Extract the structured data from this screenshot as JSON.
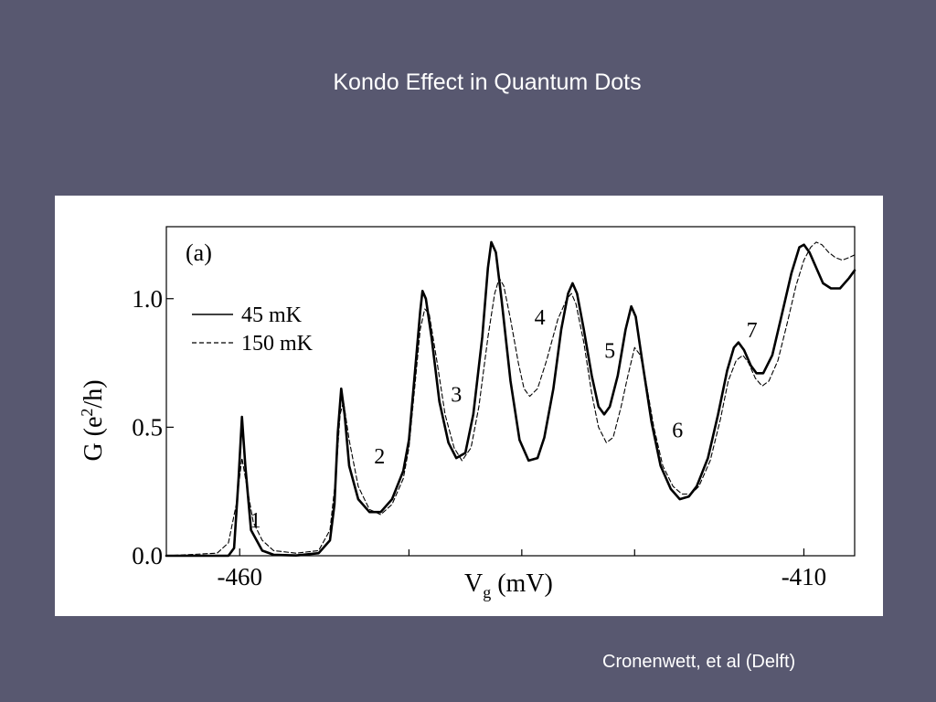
{
  "slide": {
    "title": "Kondo Effect in Quantum Dots",
    "credit": "Cronenwett, et al (Delft)"
  },
  "colors": {
    "background": "#585870",
    "panel": "#ffffff",
    "ink": "#000000"
  },
  "chart_data": {
    "type": "line",
    "panel_label": "(a)",
    "xlabel": "V",
    "xlabel_sub": "g",
    "xlabel_unit": " (mV)",
    "ylabel": "G (e",
    "ylabel_sup": "2",
    "ylabel_tail": "/h)",
    "xlim": [
      -466.5,
      -405.5
    ],
    "ylim": [
      0.0,
      1.28
    ],
    "x_major_ticks": [
      -460,
      -410
    ],
    "x_major_tick_labels": [
      "-460",
      "-410"
    ],
    "x_minor_ticks": [
      -445,
      -435,
      -425
    ],
    "y_ticks": [
      0.0,
      0.5,
      1.0
    ],
    "y_tick_labels": [
      "0.0",
      "0.5",
      "1.0"
    ],
    "grid": false,
    "legend_position": "top-left",
    "series": [
      {
        "name": "45 mK",
        "style": "solid",
        "points": [
          [
            -466.5,
            0
          ],
          [
            -461,
            0
          ],
          [
            -460.5,
            0.03
          ],
          [
            -460.1,
            0.3
          ],
          [
            -459.8,
            0.54
          ],
          [
            -459.5,
            0.35
          ],
          [
            -459,
            0.1
          ],
          [
            -458,
            0.02
          ],
          [
            -457,
            0.004
          ],
          [
            -455,
            0.001
          ],
          [
            -453,
            0.01
          ],
          [
            -452,
            0.06
          ],
          [
            -451.6,
            0.2
          ],
          [
            -451.3,
            0.48
          ],
          [
            -451,
            0.65
          ],
          [
            -450.7,
            0.55
          ],
          [
            -450.3,
            0.35
          ],
          [
            -449.5,
            0.22
          ],
          [
            -448.5,
            0.17
          ],
          [
            -447.5,
            0.17
          ],
          [
            -446.5,
            0.22
          ],
          [
            -445.5,
            0.33
          ],
          [
            -445,
            0.45
          ],
          [
            -444.5,
            0.7
          ],
          [
            -444,
            0.95
          ],
          [
            -443.8,
            1.03
          ],
          [
            -443.5,
            1.0
          ],
          [
            -443,
            0.85
          ],
          [
            -442.3,
            0.6
          ],
          [
            -441.5,
            0.44
          ],
          [
            -440.8,
            0.38
          ],
          [
            -440,
            0.4
          ],
          [
            -439.3,
            0.55
          ],
          [
            -438.5,
            0.85
          ],
          [
            -438,
            1.12
          ],
          [
            -437.7,
            1.22
          ],
          [
            -437.3,
            1.18
          ],
          [
            -436.8,
            1.0
          ],
          [
            -436,
            0.68
          ],
          [
            -435.2,
            0.45
          ],
          [
            -434.4,
            0.37
          ],
          [
            -433.6,
            0.38
          ],
          [
            -433,
            0.46
          ],
          [
            -432.2,
            0.65
          ],
          [
            -431.5,
            0.88
          ],
          [
            -430.9,
            1.02
          ],
          [
            -430.5,
            1.06
          ],
          [
            -430.1,
            1.02
          ],
          [
            -429.5,
            0.88
          ],
          [
            -428.8,
            0.7
          ],
          [
            -428.2,
            0.58
          ],
          [
            -427.7,
            0.55
          ],
          [
            -427.2,
            0.58
          ],
          [
            -426.5,
            0.7
          ],
          [
            -425.8,
            0.88
          ],
          [
            -425.3,
            0.97
          ],
          [
            -424.9,
            0.93
          ],
          [
            -424.3,
            0.75
          ],
          [
            -423.5,
            0.52
          ],
          [
            -422.7,
            0.35
          ],
          [
            -421.8,
            0.26
          ],
          [
            -421,
            0.22
          ],
          [
            -420.2,
            0.23
          ],
          [
            -419.5,
            0.27
          ],
          [
            -418.5,
            0.38
          ],
          [
            -417.6,
            0.55
          ],
          [
            -416.8,
            0.72
          ],
          [
            -416.2,
            0.81
          ],
          [
            -415.8,
            0.83
          ],
          [
            -415.3,
            0.8
          ],
          [
            -414.7,
            0.74
          ],
          [
            -414.2,
            0.71
          ],
          [
            -413.6,
            0.71
          ],
          [
            -412.8,
            0.78
          ],
          [
            -412,
            0.93
          ],
          [
            -411.1,
            1.1
          ],
          [
            -410.4,
            1.2
          ],
          [
            -410,
            1.21
          ],
          [
            -409.5,
            1.18
          ],
          [
            -408.9,
            1.12
          ],
          [
            -408.3,
            1.06
          ],
          [
            -407.6,
            1.04
          ],
          [
            -406.8,
            1.04
          ],
          [
            -406,
            1.08
          ],
          [
            -405.5,
            1.11
          ]
        ]
      },
      {
        "name": "150 mK",
        "style": "dashed",
        "points": [
          [
            -466.5,
            0
          ],
          [
            -462,
            0.01
          ],
          [
            -461,
            0.05
          ],
          [
            -460.3,
            0.2
          ],
          [
            -459.8,
            0.38
          ],
          [
            -459.4,
            0.28
          ],
          [
            -458.8,
            0.13
          ],
          [
            -458,
            0.06
          ],
          [
            -457,
            0.02
          ],
          [
            -455,
            0.01
          ],
          [
            -453,
            0.02
          ],
          [
            -452,
            0.1
          ],
          [
            -451.5,
            0.3
          ],
          [
            -451.1,
            0.55
          ],
          [
            -450.8,
            0.6
          ],
          [
            -450.3,
            0.45
          ],
          [
            -449.5,
            0.27
          ],
          [
            -448.5,
            0.18
          ],
          [
            -447.5,
            0.16
          ],
          [
            -446.5,
            0.2
          ],
          [
            -445.5,
            0.3
          ],
          [
            -445,
            0.42
          ],
          [
            -444.5,
            0.65
          ],
          [
            -444,
            0.88
          ],
          [
            -443.6,
            0.96
          ],
          [
            -443.2,
            0.94
          ],
          [
            -442.5,
            0.75
          ],
          [
            -441.8,
            0.55
          ],
          [
            -441,
            0.42
          ],
          [
            -440.3,
            0.37
          ],
          [
            -439.5,
            0.42
          ],
          [
            -438.8,
            0.58
          ],
          [
            -438,
            0.85
          ],
          [
            -437.4,
            1.02
          ],
          [
            -437,
            1.08
          ],
          [
            -436.6,
            1.05
          ],
          [
            -436,
            0.92
          ],
          [
            -435.3,
            0.75
          ],
          [
            -434.8,
            0.65
          ],
          [
            -434.3,
            0.62
          ],
          [
            -433.6,
            0.65
          ],
          [
            -432.8,
            0.76
          ],
          [
            -431.8,
            0.92
          ],
          [
            -431,
            1.0
          ],
          [
            -430.6,
            1.02
          ],
          [
            -430.2,
            0.98
          ],
          [
            -429.5,
            0.83
          ],
          [
            -428.8,
            0.63
          ],
          [
            -428.2,
            0.5
          ],
          [
            -427.5,
            0.44
          ],
          [
            -426.9,
            0.46
          ],
          [
            -426.2,
            0.58
          ],
          [
            -425.6,
            0.7
          ],
          [
            -425,
            0.81
          ],
          [
            -424.5,
            0.78
          ],
          [
            -424,
            0.68
          ],
          [
            -423.3,
            0.5
          ],
          [
            -422.5,
            0.35
          ],
          [
            -421.6,
            0.27
          ],
          [
            -420.8,
            0.24
          ],
          [
            -420,
            0.24
          ],
          [
            -419.3,
            0.27
          ],
          [
            -418.3,
            0.37
          ],
          [
            -417.4,
            0.53
          ],
          [
            -416.7,
            0.68
          ],
          [
            -416,
            0.76
          ],
          [
            -415.4,
            0.78
          ],
          [
            -414.9,
            0.75
          ],
          [
            -414.3,
            0.69
          ],
          [
            -413.7,
            0.66
          ],
          [
            -413.1,
            0.68
          ],
          [
            -412.3,
            0.76
          ],
          [
            -411.5,
            0.9
          ],
          [
            -410.7,
            1.05
          ],
          [
            -410,
            1.15
          ],
          [
            -409.4,
            1.2
          ],
          [
            -408.9,
            1.22
          ],
          [
            -408.4,
            1.21
          ],
          [
            -407.8,
            1.18
          ],
          [
            -407.2,
            1.16
          ],
          [
            -406.6,
            1.15
          ],
          [
            -406,
            1.16
          ],
          [
            -405.5,
            1.17
          ]
        ]
      }
    ],
    "annotations": [
      {
        "text": "1",
        "x": -458.6,
        "y": 0.11
      },
      {
        "text": "2",
        "x": -447.6,
        "y": 0.36
      },
      {
        "text": "3",
        "x": -440.8,
        "y": 0.6
      },
      {
        "text": "4",
        "x": -433.4,
        "y": 0.9
      },
      {
        "text": "5",
        "x": -427.2,
        "y": 0.77
      },
      {
        "text": "6",
        "x": -421.2,
        "y": 0.46
      },
      {
        "text": "7",
        "x": -414.6,
        "y": 0.85
      }
    ]
  }
}
